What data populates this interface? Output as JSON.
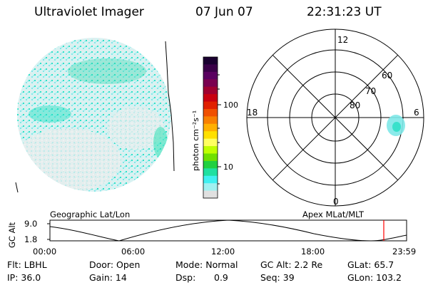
{
  "header": {
    "title": "Ultraviolet Imager",
    "date": "07 Jun 07",
    "time": "22:31:23 UT"
  },
  "colorbar": {
    "unit_label": "photon cm⁻²s⁻¹",
    "tick_labels": [
      "100",
      "10"
    ],
    "colors": [
      "#1a0030",
      "#3a0048",
      "#5a0060",
      "#7a0050",
      "#a00030",
      "#c80010",
      "#e02000",
      "#f05000",
      "#f88000",
      "#ffb000",
      "#ffe000",
      "#ffff60",
      "#c0ff00",
      "#70e000",
      "#20d040",
      "#20e0a0",
      "#40f0f0",
      "#a0f0f0",
      "#e0e0e0"
    ]
  },
  "polar_plot": {
    "mlt_labels": {
      "top": "12",
      "left": "18",
      "right": "6",
      "bottom": "0"
    },
    "lat_labels": [
      "80",
      "70",
      "60"
    ]
  },
  "timeline": {
    "left_label": "Geographic Lat/Lon",
    "right_label": "Apex MLat/MLT",
    "y_axis_label": "GC Alt",
    "y_ticks": [
      "9.0",
      "1.8"
    ],
    "x_ticks": [
      "00:00",
      "06:00",
      "12:00",
      "18:00",
      "23:59"
    ],
    "current_marker_color": "#ff0000"
  },
  "info": {
    "filter": "Flt: LBHL",
    "ip": "IP: 36.0",
    "door": "Door: Open",
    "gain": "Gain: 14",
    "mode": "Mode: Normal",
    "dsp_label": "Dsp:",
    "dsp_value": "0.9",
    "gc_alt": "GC Alt: 2.2 Re",
    "seq": "Seq: 39",
    "glat": "GLat:  65.7",
    "glon": "GLon: 103.2"
  }
}
